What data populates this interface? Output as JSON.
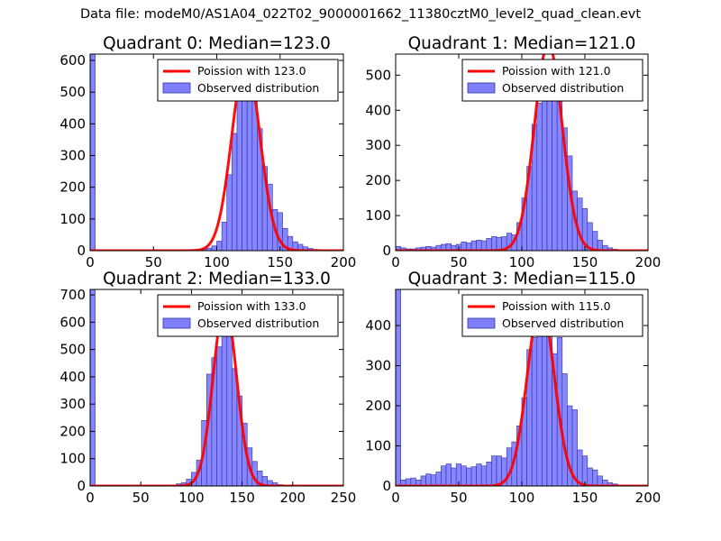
{
  "suptitle": "Data file: modeM0/AS1A04_022T02_9000001662_11380cztM0_level2_quad_clean.evt",
  "colors": {
    "bar_fill": "#8080ff",
    "bar_edge": "#3030a0",
    "curve": "#ff0000",
    "axes": "#000000"
  },
  "chart_data": [
    {
      "type": "bar",
      "title": "Quadrant 0: Median=123.0",
      "xlim": [
        0,
        200
      ],
      "ylim": [
        0,
        620
      ],
      "xticks": [
        0,
        50,
        100,
        150,
        200
      ],
      "yticks": [
        0,
        100,
        200,
        300,
        400,
        500,
        600
      ],
      "legend": {
        "placement": "top-right",
        "line_label": "Poission with 123.0",
        "bar_label": "Observed distribution"
      },
      "bin_width": 4,
      "bins": [
        [
          0,
          620
        ],
        [
          72,
          3
        ],
        [
          76,
          2
        ],
        [
          80,
          3
        ],
        [
          84,
          4
        ],
        [
          88,
          5
        ],
        [
          92,
          8
        ],
        [
          96,
          15
        ],
        [
          100,
          30
        ],
        [
          104,
          90
        ],
        [
          108,
          240
        ],
        [
          112,
          370
        ],
        [
          116,
          520
        ],
        [
          120,
          545
        ],
        [
          124,
          540
        ],
        [
          128,
          480
        ],
        [
          132,
          385
        ],
        [
          136,
          265
        ],
        [
          140,
          210
        ],
        [
          144,
          130
        ],
        [
          148,
          120
        ],
        [
          152,
          70
        ],
        [
          156,
          45
        ],
        [
          160,
          28
        ],
        [
          164,
          20
        ],
        [
          168,
          12
        ],
        [
          172,
          7
        ],
        [
          176,
          4
        ],
        [
          180,
          2
        ]
      ],
      "poisson": {
        "mean": 123,
        "peak": 600
      }
    },
    {
      "type": "bar",
      "title": "Quadrant 1: Median=121.0",
      "xlim": [
        0,
        200
      ],
      "ylim": [
        0,
        560
      ],
      "xticks": [
        0,
        50,
        100,
        150,
        200
      ],
      "yticks": [
        0,
        100,
        200,
        300,
        400,
        500
      ],
      "legend": {
        "placement": "top-right",
        "line_label": "Poission with 121.0",
        "bar_label": "Observed distribution"
      },
      "bin_width": 4,
      "bins": [
        [
          0,
          12
        ],
        [
          4,
          8
        ],
        [
          8,
          5
        ],
        [
          12,
          5
        ],
        [
          16,
          8
        ],
        [
          20,
          10
        ],
        [
          24,
          12
        ],
        [
          28,
          10
        ],
        [
          32,
          15
        ],
        [
          36,
          18
        ],
        [
          40,
          20
        ],
        [
          44,
          15
        ],
        [
          48,
          18
        ],
        [
          52,
          25
        ],
        [
          56,
          22
        ],
        [
          60,
          28
        ],
        [
          64,
          30
        ],
        [
          68,
          28
        ],
        [
          72,
          35
        ],
        [
          76,
          40
        ],
        [
          80,
          38
        ],
        [
          84,
          40
        ],
        [
          88,
          50
        ],
        [
          92,
          45
        ],
        [
          96,
          80
        ],
        [
          100,
          150
        ],
        [
          104,
          240
        ],
        [
          108,
          360
        ],
        [
          112,
          420
        ],
        [
          116,
          530
        ],
        [
          120,
          540
        ],
        [
          124,
          440
        ],
        [
          128,
          480
        ],
        [
          132,
          350
        ],
        [
          136,
          270
        ],
        [
          140,
          170
        ],
        [
          144,
          150
        ],
        [
          148,
          120
        ],
        [
          152,
          80
        ],
        [
          156,
          55
        ],
        [
          160,
          30
        ],
        [
          164,
          15
        ],
        [
          168,
          8
        ],
        [
          172,
          4
        ]
      ],
      "poisson": {
        "mean": 121,
        "peak": 590
      }
    },
    {
      "type": "bar",
      "title": "Quadrant 2: Median=133.0",
      "xlim": [
        0,
        250
      ],
      "ylim": [
        0,
        720
      ],
      "xticks": [
        0,
        50,
        100,
        150,
        200,
        250
      ],
      "yticks": [
        0,
        100,
        200,
        300,
        400,
        500,
        600,
        700
      ],
      "legend": {
        "placement": "top-right",
        "line_label": "Poission with 133.0",
        "bar_label": "Observed distribution"
      },
      "bin_width": 5,
      "bins": [
        [
          0,
          720
        ],
        [
          80,
          3
        ],
        [
          85,
          8
        ],
        [
          90,
          12
        ],
        [
          95,
          25
        ],
        [
          100,
          50
        ],
        [
          105,
          95
        ],
        [
          110,
          240
        ],
        [
          115,
          410
        ],
        [
          120,
          470
        ],
        [
          125,
          510
        ],
        [
          130,
          680
        ],
        [
          135,
          580
        ],
        [
          140,
          430
        ],
        [
          145,
          330
        ],
        [
          150,
          230
        ],
        [
          155,
          140
        ],
        [
          160,
          90
        ],
        [
          165,
          55
        ],
        [
          170,
          35
        ],
        [
          175,
          20
        ],
        [
          180,
          12
        ],
        [
          185,
          5
        ],
        [
          190,
          3
        ]
      ],
      "poisson": {
        "mean": 133,
        "peak": 665
      }
    },
    {
      "type": "bar",
      "title": "Quadrant 3: Median=115.0",
      "xlim": [
        0,
        200
      ],
      "ylim": [
        0,
        490
      ],
      "xticks": [
        0,
        50,
        100,
        150,
        200
      ],
      "yticks": [
        0,
        100,
        200,
        300,
        400
      ],
      "legend": {
        "placement": "top-right",
        "line_label": "Poission with 115.0",
        "bar_label": "Observed distribution"
      },
      "bin_width": 4,
      "bins": [
        [
          0,
          490
        ],
        [
          4,
          15
        ],
        [
          8,
          18
        ],
        [
          12,
          20
        ],
        [
          16,
          15
        ],
        [
          20,
          25
        ],
        [
          24,
          30
        ],
        [
          28,
          28
        ],
        [
          32,
          35
        ],
        [
          36,
          50
        ],
        [
          40,
          55
        ],
        [
          44,
          45
        ],
        [
          48,
          55
        ],
        [
          52,
          50
        ],
        [
          56,
          45
        ],
        [
          60,
          48
        ],
        [
          64,
          55
        ],
        [
          68,
          50
        ],
        [
          72,
          60
        ],
        [
          76,
          75
        ],
        [
          80,
          75
        ],
        [
          84,
          70
        ],
        [
          88,
          95
        ],
        [
          92,
          110
        ],
        [
          96,
          150
        ],
        [
          100,
          220
        ],
        [
          104,
          340
        ],
        [
          108,
          370
        ],
        [
          112,
          440
        ],
        [
          116,
          410
        ],
        [
          120,
          455
        ],
        [
          124,
          330
        ],
        [
          128,
          370
        ],
        [
          132,
          280
        ],
        [
          136,
          200
        ],
        [
          140,
          190
        ],
        [
          144,
          90
        ],
        [
          148,
          75
        ],
        [
          152,
          45
        ],
        [
          156,
          40
        ],
        [
          160,
          25
        ],
        [
          164,
          15
        ],
        [
          168,
          8
        ],
        [
          172,
          5
        ]
      ],
      "poisson": {
        "mean": 115,
        "peak": 455
      }
    }
  ]
}
